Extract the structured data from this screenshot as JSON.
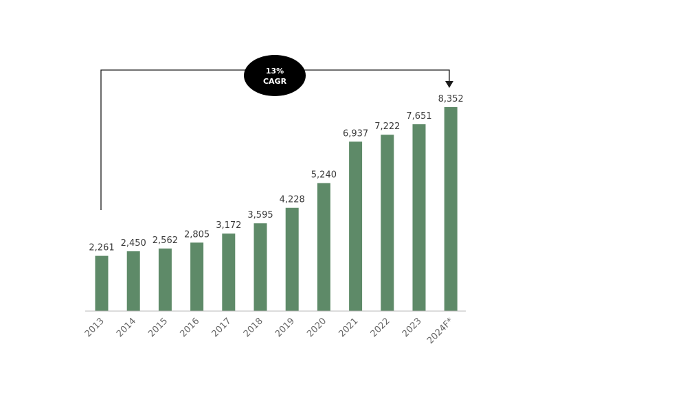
{
  "chart_data": {
    "type": "bar",
    "categories": [
      "2013",
      "2014",
      "2015",
      "2016",
      "2017",
      "2018",
      "2019",
      "2020",
      "2021",
      "2022",
      "2023",
      "2024F*"
    ],
    "values": [
      2261,
      2450,
      2562,
      2805,
      3172,
      3595,
      4228,
      5240,
      6937,
      7222,
      7651,
      8352
    ],
    "value_labels": [
      "2,261",
      "2,450",
      "2,562",
      "2,805",
      "3,172",
      "3,595",
      "4,228",
      "5,240",
      "6,937",
      "7,222",
      "7,651",
      "8,352"
    ],
    "title": "",
    "xlabel": "",
    "ylabel": "",
    "ylim": [
      0,
      8352
    ],
    "grid": false,
    "legend": "none",
    "bar_color": "#5e8a68",
    "annotation": {
      "line1": "13%",
      "line2": "CAGR",
      "from_category": "2013",
      "to_category": "2024F*",
      "badge_color": "#000000",
      "text_color": "#ffffff"
    }
  }
}
